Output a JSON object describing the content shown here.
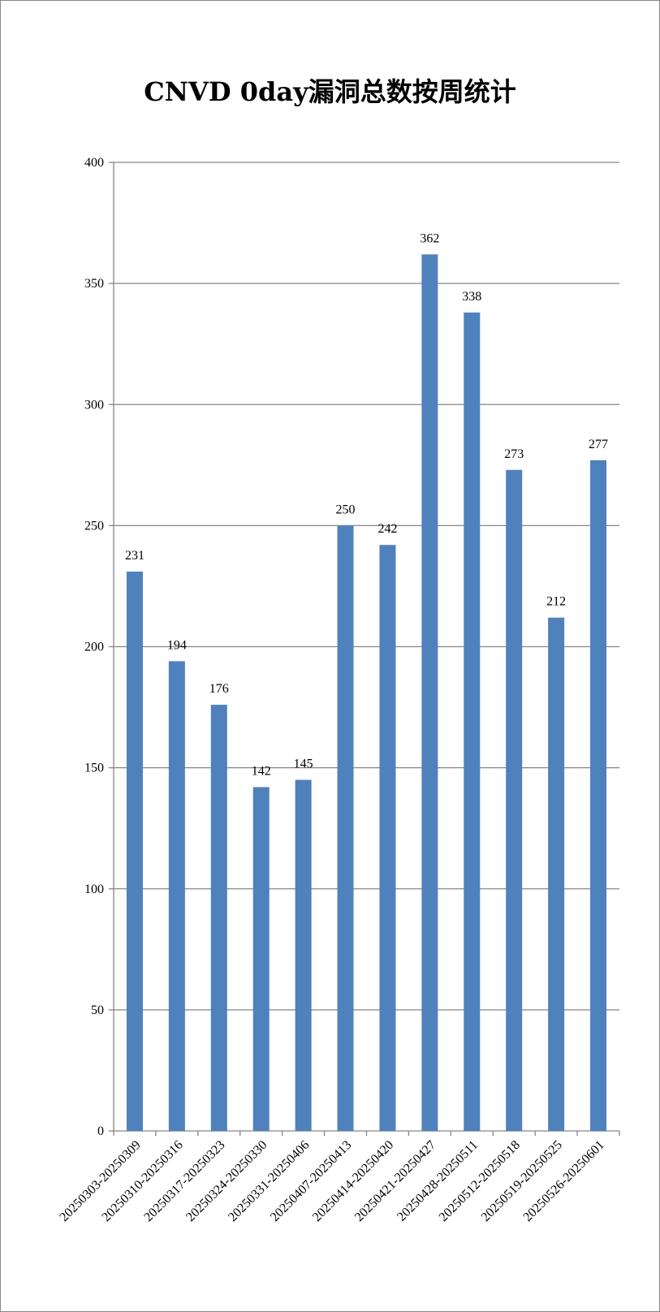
{
  "chart_data": {
    "type": "bar",
    "title": "CNVD 0day漏洞总数按周统计",
    "categories": [
      "20250303-20250309",
      "20250310-20250316",
      "20250317-20250323",
      "20250324-20250330",
      "20250331-20250406",
      "20250407-20250413",
      "20250414-20250420",
      "20250421-20250427",
      "20250428-20250511",
      "20250512-20250518",
      "20250519-20250525",
      "20250526-20250601"
    ],
    "values": [
      231,
      194,
      176,
      142,
      145,
      250,
      242,
      362,
      338,
      273,
      212,
      277
    ],
    "ylim": [
      0,
      400
    ],
    "yticks": [
      0,
      50,
      100,
      150,
      200,
      250,
      300,
      350,
      400
    ],
    "xlabel": "",
    "ylabel": "",
    "grid": "horizontal",
    "legend": "none",
    "bar_color": "#4f81bd",
    "grid_color": "#868686"
  }
}
